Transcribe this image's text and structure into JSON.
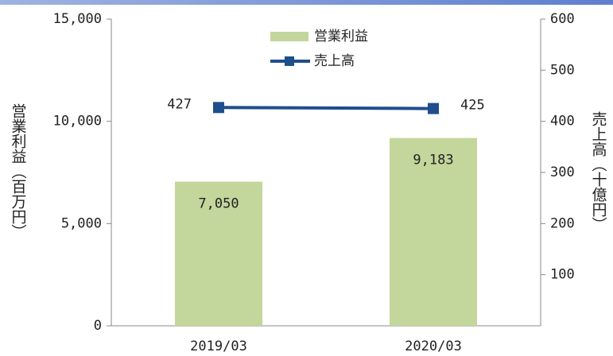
{
  "chart_data": {
    "type": "combo",
    "y_label": "営業利益（百万円）",
    "y2_label": "売上高（十億円）",
    "categories": [
      "2019/03",
      "2020/03"
    ],
    "series": [
      {
        "name": "営業利益",
        "type": "bar",
        "color": "#c3d69b",
        "values": [
          7050,
          9183
        ],
        "value_labels": [
          "7,050",
          "9,183"
        ]
      },
      {
        "name": "売上高",
        "type": "line",
        "axis": "y2",
        "color": "#1f4e8c",
        "values": [
          427,
          425
        ]
      }
    ],
    "ylim": [
      0,
      15000
    ],
    "yticks": [
      0,
      {
        "value": 5000,
        "label": "5,000"
      },
      {
        "value": 10000,
        "label": "10,000"
      },
      {
        "value": 15000,
        "label": "15,000"
      }
    ],
    "y2lim": [
      0,
      600
    ],
    "y2ticks": [
      100,
      200,
      300,
      400,
      500,
      600
    ],
    "legend": "top"
  }
}
